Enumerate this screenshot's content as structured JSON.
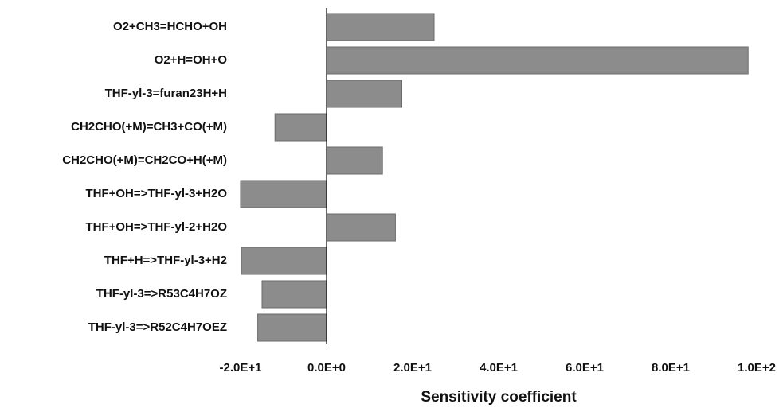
{
  "chart_data": {
    "type": "barh",
    "x_label": "Sensitivity coefficient",
    "categories": [
      "O2+CH3=HCHO+OH",
      "O2+H=OH+O",
      "THF-yl-3=furan23H+H",
      "CH2CHO(+M)=CH3+CO(+M)",
      "CH2CHO(+M)=CH2CO+H(+M)",
      "THF+OH=>THF-yl-3+H2O",
      "THF+OH=>THF-yl-2+H2O",
      "THF+H=>THF-yl-3+H2",
      "THF-yl-3=>R53C4H7OZ",
      "THF-yl-3=>R52C4H7OEZ"
    ],
    "values": [
      25,
      98,
      17.5,
      -12,
      13,
      -20,
      16,
      -19.8,
      -15,
      -16
    ],
    "color": "#8c8c8c",
    "xlim": [
      -20,
      100
    ],
    "xticks": [
      {
        "value": -20,
        "label": "-2.0E+1"
      },
      {
        "value": 0,
        "label": "0.0E+0"
      },
      {
        "value": 20,
        "label": "2.0E+1"
      },
      {
        "value": 40,
        "label": "4.0E+1"
      },
      {
        "value": 60,
        "label": "6.0E+1"
      },
      {
        "value": 80,
        "label": "8.0E+1"
      },
      {
        "value": 100,
        "label": "1.0E+2"
      }
    ]
  }
}
